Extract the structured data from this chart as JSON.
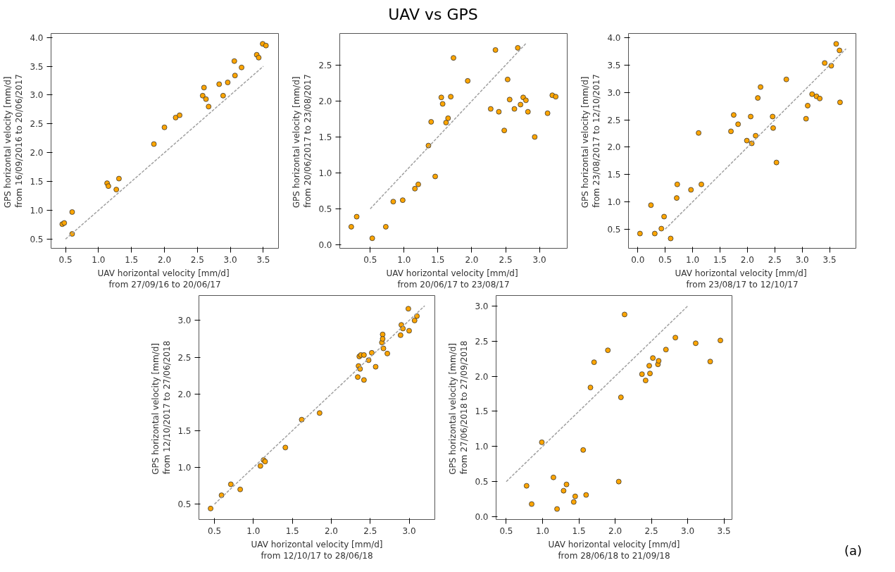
{
  "chart_data": [
    {
      "type": "scatter",
      "xlabel": "UAV  horizontal velocity [mm/d]\nfrom 27/09/16 to 20/06/17",
      "ylabel": "GPS  horizontal velocity [mm/d]\nfrom 16/09/2016 to 20/06/2017",
      "xlim": [
        0.28,
        3.73
      ],
      "ylim": [
        0.34,
        4.07
      ],
      "xticks": [
        0.5,
        {
          "value": 1,
          "label": "1.0"
        },
        1.5,
        {
          "value": 2,
          "label": "2.0"
        },
        2.5,
        {
          "value": 3,
          "label": "3.0"
        },
        3.5
      ],
      "yticks": [
        0.5,
        {
          "value": 1,
          "label": "1.0"
        },
        1.5,
        {
          "value": 2,
          "label": "2.0"
        },
        2.5,
        {
          "value": 3,
          "label": "3.0"
        },
        3.5,
        {
          "value": 4,
          "label": "4.0"
        }
      ],
      "grid": false,
      "series": [
        {
          "color": "#ffa500",
          "marker": "circle",
          "x": [
            0.45,
            0.48,
            0.6,
            0.6,
            1.13,
            1.15,
            1.27,
            1.31,
            1.84,
            2.0,
            2.17,
            2.23,
            2.58,
            2.6,
            2.63,
            2.67,
            2.83,
            2.89,
            2.96,
            3.06,
            3.07,
            3.17,
            3.4,
            3.43,
            3.49,
            3.54
          ],
          "values": [
            0.76,
            0.78,
            0.97,
            0.59,
            1.47,
            1.42,
            1.36,
            1.55,
            2.15,
            2.44,
            2.61,
            2.65,
            2.99,
            3.13,
            2.93,
            2.8,
            3.19,
            2.99,
            3.22,
            3.59,
            3.34,
            3.48,
            3.7,
            3.65,
            3.89,
            3.86
          ]
        },
        {
          "type": "line",
          "color": "#a0a0a0",
          "line_style": "dashed",
          "marker": "none",
          "x": [
            0.5,
            3.5
          ],
          "values": [
            0.5,
            3.5
          ]
        }
      ]
    },
    {
      "type": "scatter",
      "title": "UAV vs GPS",
      "xlabel": "UAV  horizontal velocity [mm/d]\nfrom 20/06/17 to 23/08/17",
      "ylabel": "GPS  horizontal velocity [mm/d]\nfrom 20/06/2017 to 23/08/2017",
      "xlim": [
        0.05,
        3.41
      ],
      "ylim": [
        -0.05,
        2.94
      ],
      "xticks": [
        0.5,
        {
          "value": 1,
          "label": "1.0"
        },
        1.5,
        {
          "value": 2,
          "label": "2.0"
        },
        2.5,
        {
          "value": 3,
          "label": "3.0"
        }
      ],
      "yticks": [
        {
          "value": 0,
          "label": "0.0"
        },
        0.5,
        {
          "value": 1,
          "label": "1.0"
        },
        1.5,
        {
          "value": 2,
          "label": "2.0"
        },
        2.5
      ],
      "grid": false,
      "series": [
        {
          "color": "#ffa500",
          "marker": "circle",
          "x": [
            0.22,
            0.3,
            0.53,
            0.73,
            0.84,
            0.98,
            1.16,
            1.21,
            1.36,
            1.4,
            1.46,
            1.55,
            1.57,
            1.62,
            1.65,
            1.69,
            1.73,
            1.94,
            2.28,
            2.35,
            2.4,
            2.48,
            2.53,
            2.56,
            2.63,
            2.68,
            2.72,
            2.76,
            2.8,
            2.83,
            2.93,
            3.12,
            3.19,
            3.24
          ],
          "values": [
            0.25,
            0.39,
            0.09,
            0.25,
            0.6,
            0.62,
            0.78,
            0.84,
            1.38,
            1.71,
            0.95,
            2.05,
            1.96,
            1.7,
            1.76,
            2.06,
            2.6,
            2.28,
            1.89,
            2.71,
            1.85,
            1.59,
            2.3,
            2.02,
            1.89,
            2.74,
            1.95,
            2.05,
            2.01,
            1.85,
            1.5,
            1.83,
            2.08,
            2.06
          ]
        },
        {
          "type": "line",
          "color": "#a0a0a0",
          "line_style": "dashed",
          "marker": "none",
          "x": [
            0.5,
            2.8
          ],
          "values": [
            0.5,
            2.8
          ]
        }
      ]
    },
    {
      "type": "scatter",
      "xlabel": "UAV  horizontal velocity [mm/d]\nfrom 23/08/17 to 12/10/17",
      "ylabel": "GPS  horizontal velocity [mm/d]\nfrom 23/08/2017 to 12/10/2017",
      "xlim": [
        -0.17,
        3.98
      ],
      "ylim": [
        0.15,
        4.08
      ],
      "xticks": [
        {
          "value": 0,
          "label": "0.0"
        },
        0.5,
        {
          "value": 1,
          "label": "1.0"
        },
        1.5,
        {
          "value": 2,
          "label": "2.0"
        },
        2.5,
        {
          "value": 3,
          "label": "3.0"
        },
        3.5
      ],
      "yticks": [
        0.5,
        {
          "value": 1,
          "label": "1.0"
        },
        1.5,
        {
          "value": 2,
          "label": "2.0"
        },
        2.5,
        {
          "value": 3,
          "label": "3.0"
        },
        3.5,
        {
          "value": 4,
          "label": "4.0"
        }
      ],
      "grid": false,
      "series": [
        {
          "color": "#ffa500",
          "marker": "circle",
          "x": [
            0.04,
            0.24,
            0.31,
            0.43,
            0.48,
            0.6,
            0.71,
            0.72,
            0.97,
            1.11,
            1.16,
            1.7,
            1.75,
            1.83,
            1.99,
            2.06,
            2.08,
            2.15,
            2.19,
            2.24,
            2.46,
            2.47,
            2.53,
            2.71,
            3.07,
            3.1,
            3.18,
            3.26,
            3.32,
            3.41,
            3.53,
            3.62,
            3.68,
            3.69
          ],
          "values": [
            0.42,
            0.94,
            0.42,
            0.51,
            0.73,
            0.33,
            1.07,
            1.32,
            1.22,
            2.26,
            1.32,
            2.29,
            2.59,
            2.42,
            2.12,
            2.56,
            2.07,
            2.21,
            2.9,
            3.1,
            2.56,
            2.35,
            1.72,
            3.24,
            2.52,
            2.76,
            2.97,
            2.93,
            2.89,
            3.54,
            3.49,
            3.89,
            3.77,
            2.82
          ]
        },
        {
          "type": "line",
          "color": "#a0a0a0",
          "line_style": "dashed",
          "marker": "none",
          "x": [
            0.5,
            3.8
          ],
          "values": [
            0.5,
            3.8
          ]
        }
      ]
    },
    {
      "type": "scatter",
      "xlabel": "UAV horizontal velocity [mm/d]\nfrom 12/10/17 to 28/06/18",
      "ylabel": "GPS  horizontal velocity [mm/d]\nfrom 12/10/2017 to 27/06/2018",
      "xlim": [
        0.3,
        3.33
      ],
      "ylim": [
        0.29,
        3.34
      ],
      "xticks": [
        0.5,
        {
          "value": 1,
          "label": "1.0"
        },
        1.5,
        {
          "value": 2,
          "label": "2.0"
        },
        2.5,
        {
          "value": 3,
          "label": "3.0"
        }
      ],
      "yticks": [
        0.5,
        {
          "value": 1,
          "label": "1.0"
        },
        1.5,
        {
          "value": 2,
          "label": "2.0"
        },
        2.5,
        {
          "value": 3,
          "label": "3.0"
        }
      ],
      "grid": false,
      "series": [
        {
          "color": "#ffa500",
          "marker": "circle",
          "x": [
            0.45,
            0.59,
            0.71,
            0.83,
            1.09,
            1.13,
            1.15,
            1.41,
            1.62,
            1.85,
            2.34,
            2.35,
            2.36,
            2.37,
            2.38,
            2.42,
            2.42,
            2.48,
            2.52,
            2.57,
            2.65,
            2.66,
            2.66,
            2.67,
            2.72,
            2.89,
            2.9,
            2.92,
            2.99,
            3.0,
            3.07,
            3.1
          ],
          "values": [
            0.44,
            0.62,
            0.77,
            0.7,
            1.02,
            1.1,
            1.08,
            1.27,
            1.65,
            1.74,
            2.23,
            2.38,
            2.51,
            2.34,
            2.53,
            2.53,
            2.19,
            2.46,
            2.56,
            2.37,
            2.7,
            2.81,
            2.75,
            2.62,
            2.55,
            2.8,
            2.94,
            2.89,
            3.16,
            2.86,
            3.0,
            3.06
          ]
        },
        {
          "type": "line",
          "color": "#a0a0a0",
          "line_style": "dashed",
          "marker": "none",
          "x": [
            0.5,
            3.2
          ],
          "values": [
            0.5,
            3.2
          ]
        }
      ]
    },
    {
      "type": "scatter",
      "xlabel": "UAV horizontal velocity [mm/d]\nfrom 28/06/18 to 21/09/18",
      "ylabel": "GPS  horizontal velocity [mm/d]\nfrom 27/06/2018 to 27/09/2018",
      "xlim": [
        0.36,
        3.61
      ],
      "ylim": [
        -0.04,
        3.15
      ],
      "xticks": [
        0.5,
        {
          "value": 1,
          "label": "1.0"
        },
        1.5,
        {
          "value": 2,
          "label": "2.0"
        },
        2.5,
        {
          "value": 3,
          "label": "3.0"
        },
        3.5
      ],
      "yticks": [
        {
          "value": 0,
          "label": "0.0"
        },
        0.5,
        {
          "value": 1,
          "label": "1.0"
        },
        1.5,
        {
          "value": 2,
          "label": "2.0"
        },
        2.5,
        {
          "value": 3,
          "label": "3.0"
        }
      ],
      "grid": false,
      "annotations": [
        "(a)"
      ],
      "series": [
        {
          "color": "#ffa500",
          "marker": "circle",
          "x": [
            0.78,
            0.85,
            0.99,
            1.15,
            1.2,
            1.29,
            1.33,
            1.43,
            1.45,
            1.56,
            1.6,
            1.66,
            1.71,
            1.9,
            2.05,
            2.08,
            2.13,
            2.37,
            2.42,
            2.47,
            2.48,
            2.52,
            2.59,
            2.6,
            2.7,
            2.83,
            3.11,
            3.31,
            3.45
          ],
          "values": [
            0.44,
            0.18,
            1.06,
            0.56,
            0.11,
            0.37,
            0.46,
            0.21,
            0.29,
            0.95,
            0.31,
            1.84,
            2.2,
            2.37,
            0.5,
            1.7,
            2.88,
            2.03,
            1.94,
            2.15,
            2.04,
            2.26,
            2.17,
            2.22,
            2.38,
            2.55,
            2.47,
            2.21,
            2.51
          ]
        },
        {
          "type": "line",
          "color": "#a0a0a0",
          "line_style": "dashed",
          "marker": "none",
          "x": [
            0.5,
            3.0
          ],
          "values": [
            0.5,
            3.0
          ]
        }
      ]
    }
  ]
}
